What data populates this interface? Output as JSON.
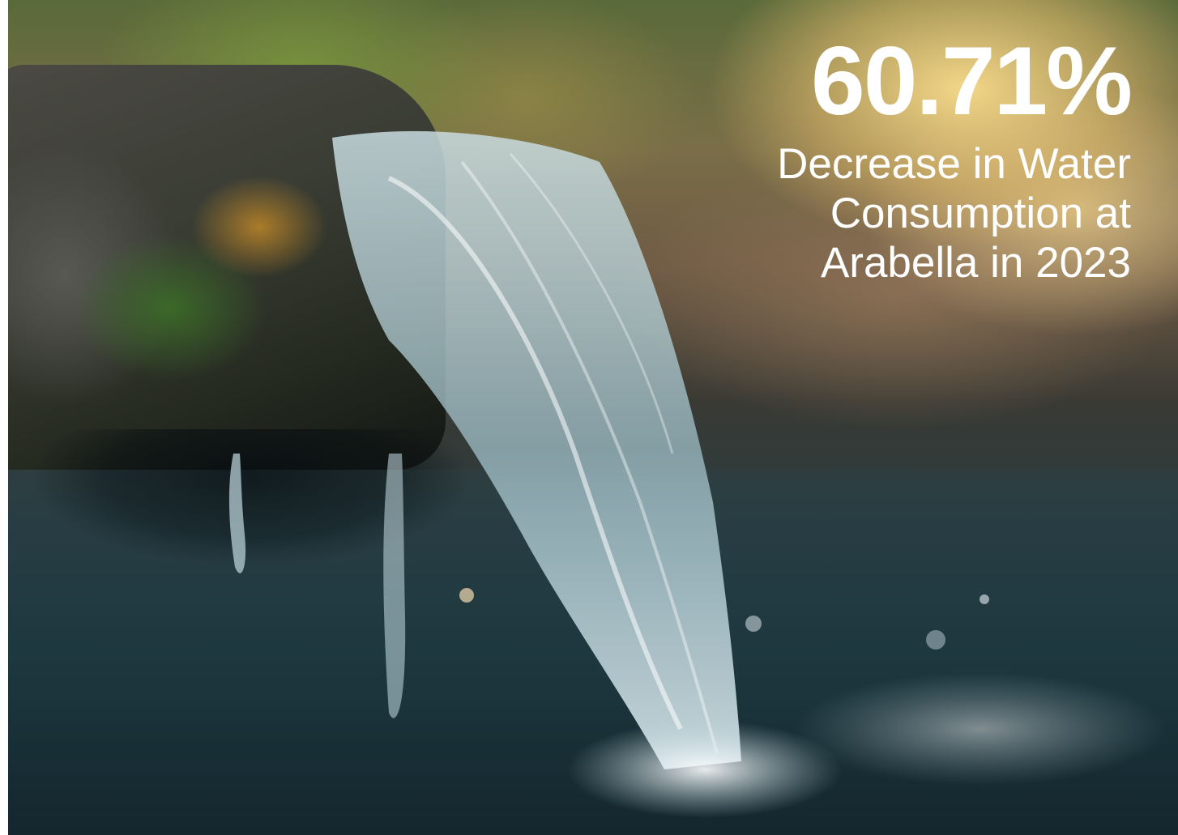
{
  "stat": {
    "value": "60.71%",
    "label_lines": [
      "Decrease in Water",
      "Consumption at",
      "Arabella in 2023"
    ]
  },
  "photo": {
    "subject": "water-pouring-from-stone-spout",
    "palette": {
      "text": "#ffffff",
      "warm_glow": "#f2d38c",
      "water": "#a9c9d2",
      "deep_shadow": "#0e1a1c"
    }
  }
}
